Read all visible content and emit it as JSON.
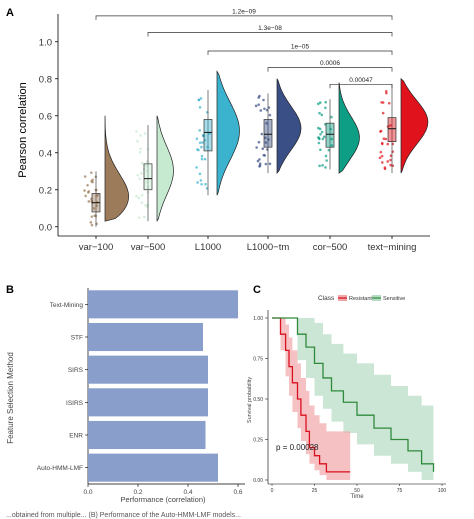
{
  "figure": {
    "panel_labels": [
      "A",
      "B",
      "C"
    ],
    "caption_fragment": "...obtained from multiple... (B) Performance of the Auto-HMM-LMF models..."
  },
  "chart_data": [
    {
      "panel": "A",
      "type": "violin-box",
      "ylabel": "Pearson correlation",
      "ylim": [
        -0.05,
        1.15
      ],
      "yticks": [
        0.0,
        0.2,
        0.4,
        0.6,
        0.8,
        1.0
      ],
      "ytick_labels": [
        "0.0",
        "0.2",
        "0.4",
        "0.6",
        "0.8",
        "1.0"
      ],
      "grid": false,
      "categories": [
        "var−100",
        "var−500",
        "L1000",
        "L1000−tm",
        "cor−500",
        "text−mining"
      ],
      "colors": [
        "#9b7b5a",
        "#c6ead0",
        "#3bb3cf",
        "#3a4f86",
        "#0e9e86",
        "#e0121b"
      ],
      "box_stats": [
        {
          "q1": 0.08,
          "median": 0.13,
          "q3": 0.18,
          "lo": 0.0,
          "hi": 0.3
        },
        {
          "q1": 0.2,
          "median": 0.26,
          "q3": 0.34,
          "lo": 0.03,
          "hi": 0.55
        },
        {
          "q1": 0.41,
          "median": 0.51,
          "q3": 0.58,
          "lo": 0.17,
          "hi": 0.74
        },
        {
          "q1": 0.43,
          "median": 0.5,
          "q3": 0.58,
          "lo": 0.29,
          "hi": 0.72
        },
        {
          "q1": 0.43,
          "median": 0.5,
          "q3": 0.56,
          "lo": 0.31,
          "hi": 0.69
        },
        {
          "q1": 0.46,
          "median": 0.53,
          "q3": 0.59,
          "lo": 0.29,
          "hi": 0.77
        }
      ],
      "violin": [
        {
          "min": 0.03,
          "max": 0.6,
          "peak": 0.12,
          "width": 0.95
        },
        {
          "min": 0.03,
          "max": 0.6,
          "peak": 0.3,
          "width": 0.55
        },
        {
          "min": 0.17,
          "max": 0.84,
          "peak": 0.52,
          "width": 0.75
        },
        {
          "min": 0.29,
          "max": 0.8,
          "peak": 0.53,
          "width": 0.8
        },
        {
          "min": 0.29,
          "max": 0.78,
          "peak": 0.47,
          "width": 0.7
        },
        {
          "min": 0.29,
          "max": 0.8,
          "peak": 0.57,
          "width": 0.9
        }
      ],
      "comparisons": [
        {
          "from": 0,
          "to": 5,
          "label": "1.2e−09",
          "y": 1.14
        },
        {
          "from": 1,
          "to": 5,
          "label": "1.3e−08",
          "y": 1.05
        },
        {
          "from": 2,
          "to": 5,
          "label": "1e−05",
          "y": 0.95
        },
        {
          "from": 3,
          "to": 5,
          "label": "0.0006",
          "y": 0.86
        },
        {
          "from": 4,
          "to": 5,
          "label": "0.00047",
          "y": 0.77
        }
      ]
    },
    {
      "panel": "B",
      "type": "bar",
      "orientation": "horizontal",
      "xlabel": "Performance (correlation)",
      "ylabel": "Feature Selection Method",
      "xlim": [
        0,
        0.6
      ],
      "xticks": [
        0,
        0.2,
        0.4,
        0.6
      ],
      "xtick_labels": [
        "0.0",
        "0.2",
        "0.4",
        "0.6"
      ],
      "categories": [
        "Text-Mining",
        "STF",
        "SIRS",
        "ISIRS",
        "ENR",
        "Auto-HMM-LMF"
      ],
      "values": [
        0.6,
        0.46,
        0.48,
        0.48,
        0.47,
        0.52
      ],
      "color": "#8a9ecb"
    },
    {
      "panel": "C",
      "type": "line",
      "subtype": "kaplan-meier",
      "xlabel": "Time",
      "ylabel": "Survival probability",
      "xlim": [
        0,
        100
      ],
      "ylim": [
        0,
        1
      ],
      "xticks": [
        0,
        25,
        50,
        75,
        100
      ],
      "yticks": [
        0,
        0.25,
        0.5,
        0.75,
        1.0
      ],
      "ytick_labels": [
        "0.00",
        "0.25",
        "0.50",
        "0.75",
        "1.00"
      ],
      "legend_title": "Class",
      "legend_position": "top",
      "annotation": "p = 0.00028",
      "series": [
        {
          "name": "Resistant",
          "color": "#d9111e",
          "fill": "#f2a7a9",
          "x": [
            0,
            5,
            8,
            10,
            12,
            15,
            17,
            20,
            22,
            25,
            28,
            32,
            46
          ],
          "y": [
            1.0,
            0.9,
            0.8,
            0.7,
            0.6,
            0.5,
            0.4,
            0.3,
            0.2,
            0.15,
            0.1,
            0.05,
            0.05
          ],
          "upper": [
            1.0,
            1.0,
            0.96,
            0.88,
            0.8,
            0.72,
            0.63,
            0.55,
            0.46,
            0.4,
            0.35,
            0.3,
            0.3
          ],
          "lower": [
            1.0,
            0.8,
            0.64,
            0.52,
            0.42,
            0.32,
            0.24,
            0.16,
            0.1,
            0.06,
            0.03,
            0.0,
            0.0
          ]
        },
        {
          "name": "Sensitive",
          "color": "#2f8a3c",
          "fill": "#b5dcc2",
          "x": [
            0,
            10,
            15,
            20,
            25,
            30,
            35,
            42,
            50,
            60,
            70,
            80,
            88,
            95
          ],
          "y": [
            1.0,
            1.0,
            0.9,
            0.82,
            0.72,
            0.63,
            0.55,
            0.48,
            0.4,
            0.32,
            0.25,
            0.18,
            0.1,
            0.05
          ],
          "upper": [
            1.0,
            1.0,
            1.0,
            1.0,
            0.97,
            0.9,
            0.84,
            0.78,
            0.72,
            0.65,
            0.58,
            0.52,
            0.46,
            0.42
          ],
          "lower": [
            1.0,
            1.0,
            0.74,
            0.63,
            0.52,
            0.44,
            0.36,
            0.29,
            0.22,
            0.15,
            0.1,
            0.05,
            0.0,
            0.0
          ]
        }
      ]
    }
  ]
}
